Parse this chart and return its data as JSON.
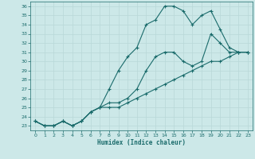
{
  "xlabel": "Humidex (Indice chaleur)",
  "bg_color": "#cce8e8",
  "line_color": "#1a6b6b",
  "grid_color": "#b8d8d8",
  "xlim": [
    -0.5,
    23.5
  ],
  "ylim": [
    22.5,
    36.5
  ],
  "xticks": [
    0,
    1,
    2,
    3,
    4,
    5,
    6,
    7,
    8,
    9,
    10,
    11,
    12,
    13,
    14,
    15,
    16,
    17,
    18,
    19,
    20,
    21,
    22,
    23
  ],
  "yticks": [
    23,
    24,
    25,
    26,
    27,
    28,
    29,
    30,
    31,
    32,
    33,
    34,
    35,
    36
  ],
  "line1_x": [
    0,
    1,
    2,
    3,
    4,
    5,
    6,
    7,
    8,
    9,
    10,
    11,
    12,
    13,
    14,
    15,
    16,
    17,
    18,
    19,
    20,
    21,
    22,
    23
  ],
  "line1_y": [
    23.5,
    23,
    23,
    23.5,
    23,
    23.5,
    24.5,
    25,
    25.5,
    25.5,
    26,
    27,
    29,
    30.5,
    31,
    31,
    30,
    29.5,
    30,
    33,
    32,
    31,
    31,
    31
  ],
  "line2_x": [
    0,
    1,
    2,
    3,
    4,
    5,
    6,
    7,
    8,
    9,
    10,
    11,
    12,
    13,
    14,
    15,
    16,
    17,
    18,
    19,
    20,
    21,
    22,
    23
  ],
  "line2_y": [
    23.5,
    23,
    23,
    23.5,
    23,
    23.5,
    24.5,
    25,
    27,
    29,
    30.5,
    31.5,
    34,
    34.5,
    36,
    36,
    35.5,
    34,
    35,
    35.5,
    33.5,
    31.5,
    31,
    31
  ],
  "line3_x": [
    0,
    1,
    2,
    3,
    4,
    5,
    6,
    7,
    8,
    9,
    10,
    11,
    12,
    13,
    14,
    15,
    16,
    17,
    18,
    19,
    20,
    21,
    22,
    23
  ],
  "line3_y": [
    23.5,
    23,
    23,
    23.5,
    23,
    23.5,
    24.5,
    25,
    25,
    25,
    25.5,
    26,
    26.5,
    27,
    27.5,
    28,
    28.5,
    29,
    29.5,
    30,
    30,
    30.5,
    31,
    31
  ],
  "lw": 0.8,
  "ms": 3.0
}
